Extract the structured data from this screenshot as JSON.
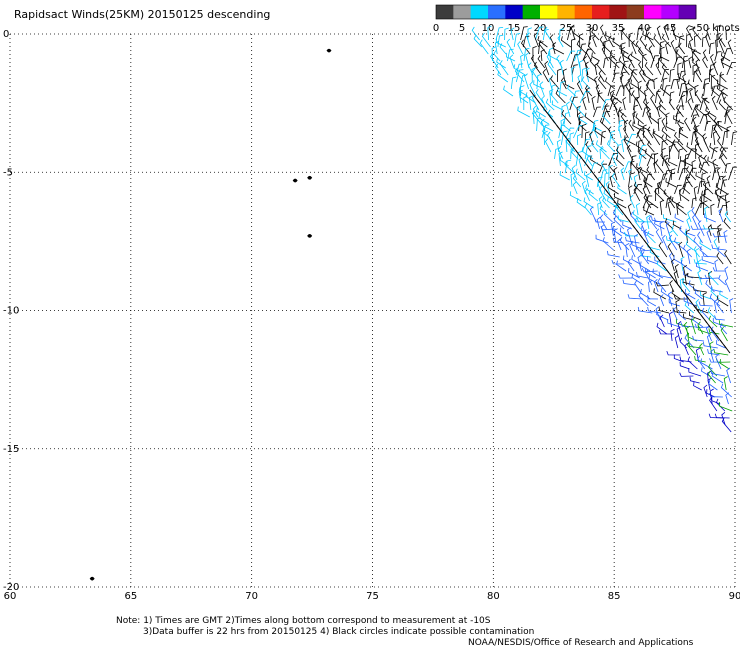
{
  "title": "Rapidsact Winds(25KM) 20150125 descending",
  "legend": {
    "labels": [
      "0",
      "5",
      "10",
      "15",
      "20",
      "25",
      "30",
      "35",
      "40",
      "45",
      ">50 knots"
    ],
    "colors": [
      "#3c3c3c",
      "#9c9c9c",
      "#00d8ff",
      "#2a6fff",
      "#0000c8",
      "#00b000",
      "#ffff00",
      "#ffb400",
      "#ff6400",
      "#e61e1e",
      "#a01414",
      "#8c3c1e",
      "#ff00ff",
      "#b400ff",
      "#6400b4"
    ]
  },
  "axes": {
    "lon_ticks": [
      "60",
      "65",
      "70",
      "75",
      "80",
      "85",
      "90"
    ],
    "lat_ticks": [
      "0",
      "-5",
      "-10",
      "-15",
      "-20"
    ],
    "lon_range": [
      60,
      90
    ],
    "lat_range": [
      0,
      -20
    ],
    "grid": "dotted"
  },
  "notes": {
    "line1": "Note: 1) Times are GMT 2)Times along bottom correspond to measurement at -10S",
    "line2": "3)Data buffer is 22 hrs from 20150125 4) Black circles indicate possible contamination",
    "credit": "NOAA/NESDIS/Office of Research and Applications"
  },
  "islands": [
    {
      "name": "island-north",
      "lon": 73.2,
      "lat": -0.6
    },
    {
      "name": "island-central",
      "lon": 71.8,
      "lat": -5.3
    },
    {
      "name": "island-central-2",
      "lon": 72.4,
      "lat": -5.2
    },
    {
      "name": "island-south",
      "lon": 72.4,
      "lat": -7.3
    },
    {
      "name": "island-southwest",
      "lon": 63.4,
      "lat": -19.7
    }
  ],
  "swath": {
    "edge_top_lon": 79.0,
    "edge_bottom_lon": 90.0,
    "edge_bottom_lat": -15.0,
    "colors": {
      "calm": "#000000",
      "light": "#00c8ff",
      "moderate": "#2060ff",
      "strong": "#0000c8",
      "fresh": "#00a000"
    }
  }
}
